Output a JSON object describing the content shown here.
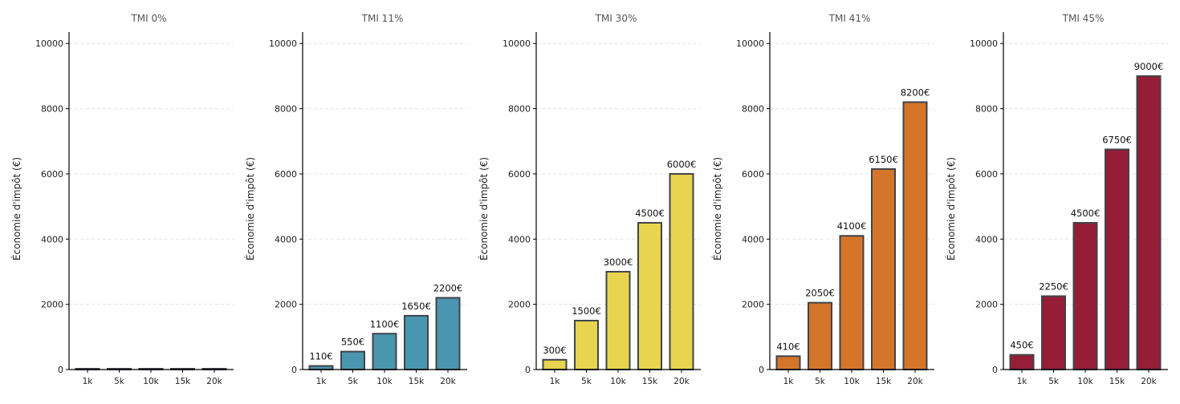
{
  "chart_data": [
    {
      "type": "bar",
      "title": "TMI 0%",
      "ylabel": "Économie d'impôt (€)",
      "xlabel": "",
      "categories": [
        "1k",
        "5k",
        "10k",
        "15k",
        "20k"
      ],
      "values": [
        0,
        0,
        0,
        0,
        0
      ],
      "data_labels": [],
      "ylim": [
        0,
        10350
      ],
      "yticks": [
        0,
        2000,
        4000,
        6000,
        8000,
        10000
      ],
      "grid": "y-dashed",
      "color": "#4a96b0"
    },
    {
      "type": "bar",
      "title": "TMI 11%",
      "ylabel": "Économie d'impôt (€)",
      "xlabel": "",
      "categories": [
        "1k",
        "5k",
        "10k",
        "15k",
        "20k"
      ],
      "values": [
        110,
        550,
        1100,
        1650,
        2200
      ],
      "data_labels": [
        "110€",
        "550€",
        "1100€",
        "1650€",
        "2200€"
      ],
      "ylim": [
        0,
        10350
      ],
      "yticks": [
        0,
        2000,
        4000,
        6000,
        8000,
        10000
      ],
      "grid": "y-dashed",
      "color": "#4a96b0"
    },
    {
      "type": "bar",
      "title": "TMI 30%",
      "ylabel": "Économie d'impôt (€)",
      "xlabel": "",
      "categories": [
        "1k",
        "5k",
        "10k",
        "15k",
        "20k"
      ],
      "values": [
        300,
        1500,
        3000,
        4500,
        6000
      ],
      "data_labels": [
        "300€",
        "1500€",
        "3000€",
        "4500€",
        "6000€"
      ],
      "ylim": [
        0,
        10350
      ],
      "yticks": [
        0,
        2000,
        4000,
        6000,
        8000,
        10000
      ],
      "grid": "y-dashed",
      "color": "#e8d44f"
    },
    {
      "type": "bar",
      "title": "TMI 41%",
      "ylabel": "Économie d'impôt (€)",
      "xlabel": "",
      "categories": [
        "1k",
        "5k",
        "10k",
        "15k",
        "20k"
      ],
      "values": [
        410,
        2050,
        4100,
        6150,
        8200
      ],
      "data_labels": [
        "410€",
        "2050€",
        "4100€",
        "6150€",
        "8200€"
      ],
      "ylim": [
        0,
        10350
      ],
      "yticks": [
        0,
        2000,
        4000,
        6000,
        8000,
        10000
      ],
      "grid": "y-dashed",
      "color": "#d4752a"
    },
    {
      "type": "bar",
      "title": "TMI 45%",
      "ylabel": "Économie d'impôt (€)",
      "xlabel": "",
      "categories": [
        "1k",
        "5k",
        "10k",
        "15k",
        "20k"
      ],
      "values": [
        450,
        2250,
        4500,
        6750,
        9000
      ],
      "data_labels": [
        "450€",
        "2250€",
        "4500€",
        "6750€",
        "9000€"
      ],
      "ylim": [
        0,
        10350
      ],
      "yticks": [
        0,
        2000,
        4000,
        6000,
        8000,
        10000
      ],
      "grid": "y-dashed",
      "color": "#961d36"
    }
  ],
  "edge_color": "#404349"
}
